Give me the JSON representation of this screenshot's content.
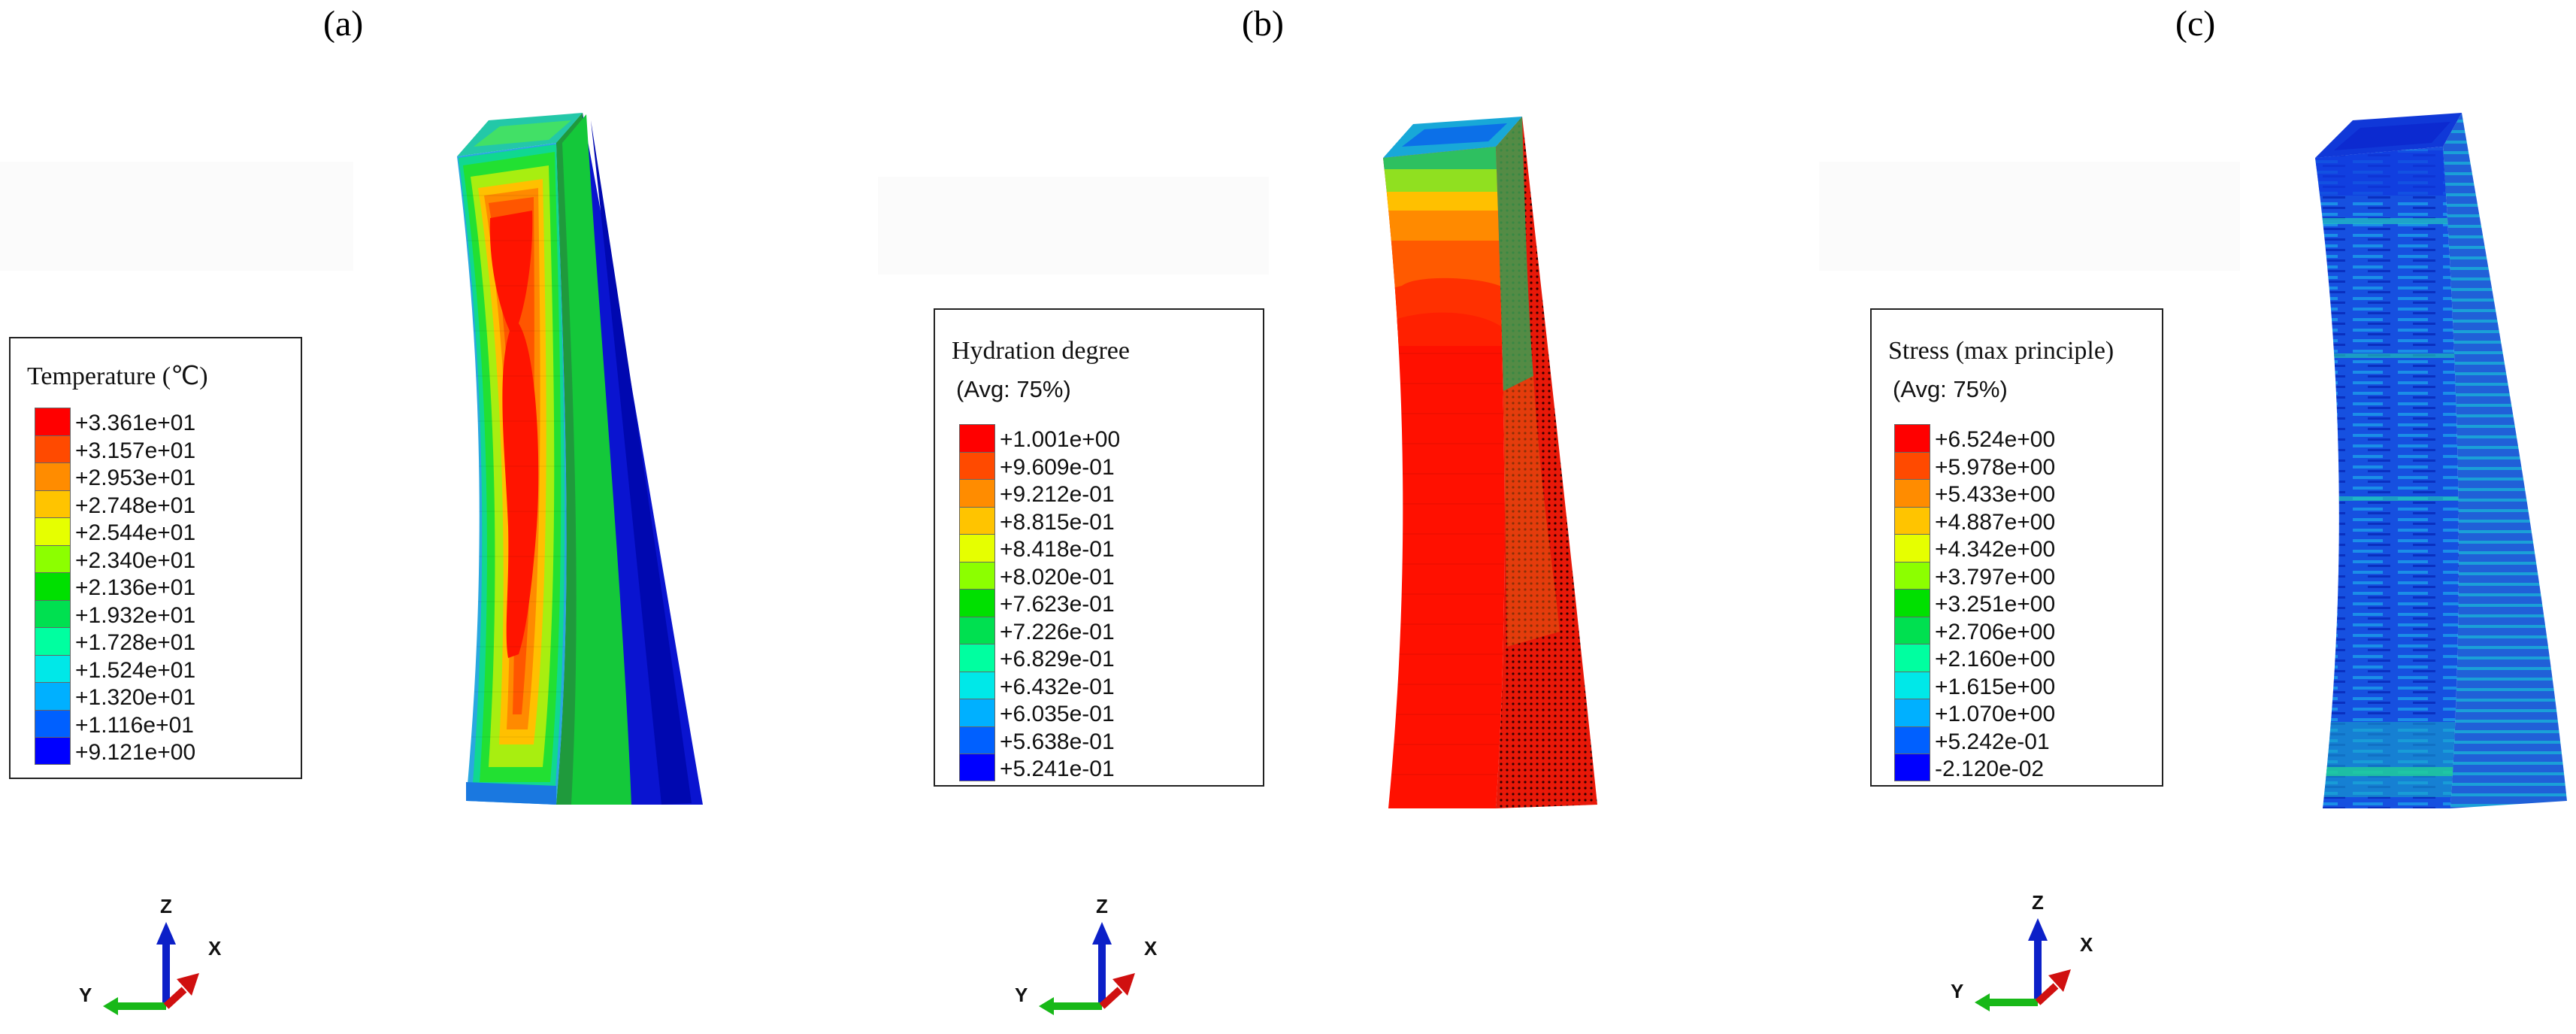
{
  "panels": [
    {
      "label": "(a)",
      "legend": {
        "title": "Temperature (℃)",
        "subtitle": "",
        "values": [
          "+3.361e+01",
          "+3.157e+01",
          "+2.953e+01",
          "+2.748e+01",
          "+2.544e+01",
          "+2.340e+01",
          "+2.136e+01",
          "+1.932e+01",
          "+1.728e+01",
          "+1.524e+01",
          "+1.320e+01",
          "+1.116e+01",
          "+9.121e+00"
        ]
      },
      "triad": {
        "z": "Z",
        "x": "X",
        "y": "Y"
      }
    },
    {
      "label": "(b)",
      "legend": {
        "title": "Hydration degree",
        "subtitle": "(Avg: 75%)",
        "values": [
          "+1.001e+00",
          "+9.609e-01",
          "+9.212e-01",
          "+8.815e-01",
          "+8.418e-01",
          "+8.020e-01",
          "+7.623e-01",
          "+7.226e-01",
          "+6.829e-01",
          "+6.432e-01",
          "+6.035e-01",
          "+5.638e-01",
          "+5.241e-01"
        ]
      },
      "triad": {
        "z": "Z",
        "x": "X",
        "y": "Y"
      }
    },
    {
      "label": "(c)",
      "legend": {
        "title": "Stress (max principle)",
        "subtitle": "(Avg: 75%)",
        "values": [
          "+6.524e+00",
          "+5.978e+00",
          "+5.433e+00",
          "+4.887e+00",
          "+4.342e+00",
          "+3.797e+00",
          "+3.251e+00",
          "+2.706e+00",
          "+2.160e+00",
          "+1.615e+00",
          "+1.070e+00",
          "+5.242e-01",
          "-2.120e-02"
        ]
      },
      "triad": {
        "z": "Z",
        "x": "X",
        "y": "Y"
      }
    }
  ],
  "colormap": [
    "#ff0000",
    "#ff4a00",
    "#ff8c00",
    "#ffc400",
    "#e6ff00",
    "#8cff00",
    "#00e000",
    "#00e050",
    "#00ffa0",
    "#00e8e8",
    "#00b0ff",
    "#0060ff",
    "#0000ff"
  ]
}
